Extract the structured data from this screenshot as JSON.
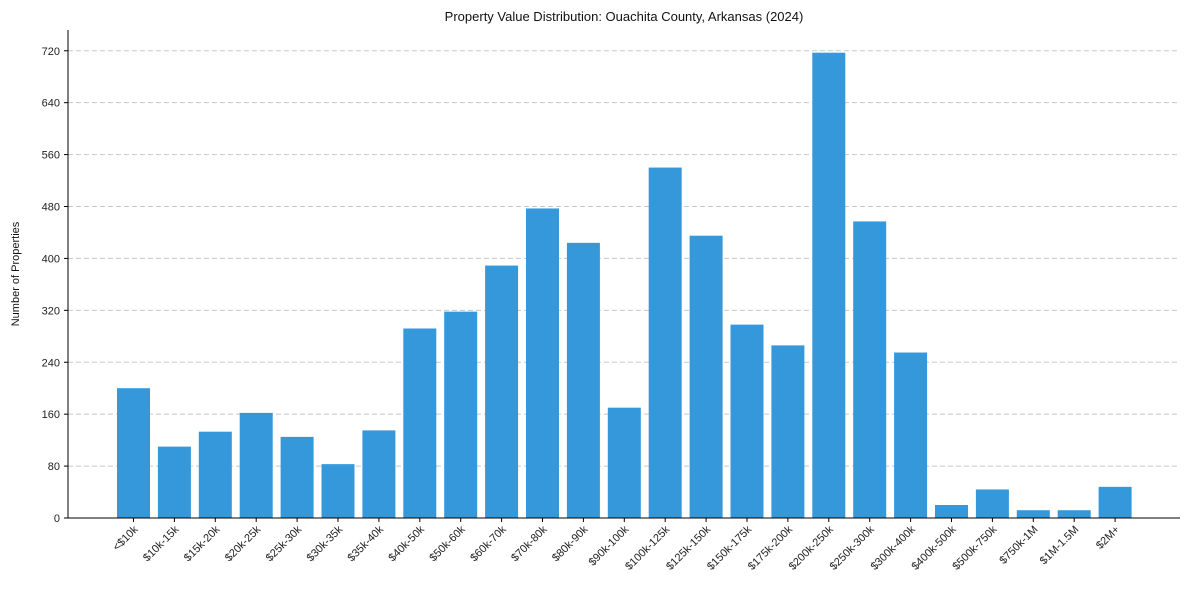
{
  "chart_data": {
    "type": "bar",
    "title": "Property Value Distribution: Ouachita County, Arkansas (2024)",
    "xlabel": "",
    "ylabel": "Number of Properties",
    "ylim": [
      0,
      752
    ],
    "yticks": [
      0,
      80,
      160,
      240,
      320,
      400,
      480,
      560,
      640,
      720
    ],
    "grid": "y-dashed",
    "bar_color": "#3498db",
    "categories": [
      "<$10k",
      "$10k-15k",
      "$15k-20k",
      "$20k-25k",
      "$25k-30k",
      "$30k-35k",
      "$35k-40k",
      "$40k-50k",
      "$50k-60k",
      "$60k-70k",
      "$70k-80k",
      "$80k-90k",
      "$90k-100k",
      "$100k-125k",
      "$125k-150k",
      "$150k-175k",
      "$175k-200k",
      "$200k-250k",
      "$250k-300k",
      "$300k-400k",
      "$400k-500k",
      "$500k-750k",
      "$750k-1M",
      "$1M-1.5M",
      "$2M+"
    ],
    "values": [
      200,
      110,
      133,
      162,
      125,
      83,
      135,
      292,
      318,
      389,
      477,
      424,
      170,
      540,
      435,
      298,
      266,
      717,
      457,
      255,
      20,
      44,
      12,
      12,
      48
    ]
  }
}
